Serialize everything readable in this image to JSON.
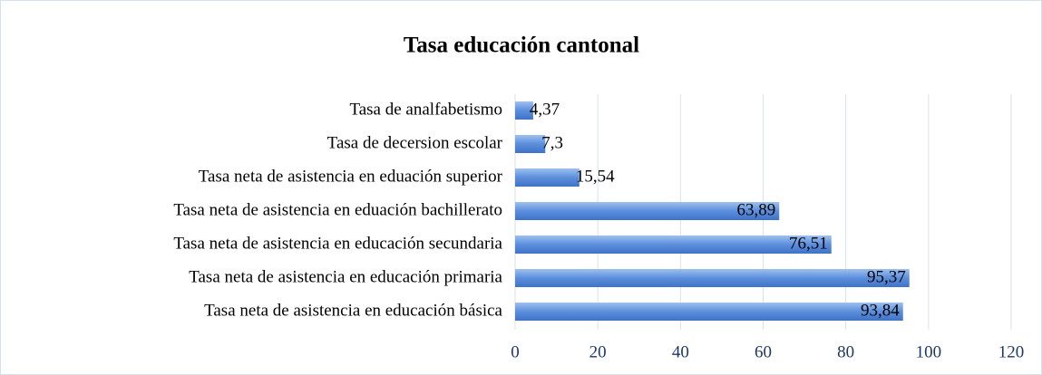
{
  "chart_data": {
    "type": "bar",
    "orientation": "horizontal",
    "title": "Tasa educación cantonal",
    "categories": [
      "Tasa de analfabetismo",
      "Tasa de decersion escolar",
      "Tasa neta de asistencia en eduación superior",
      "Tasa neta de asistencia en eduación bachillerato",
      "Tasa neta de asistencia en educación secundaria",
      "Tasa neta de asistencia en educación primaria",
      "Tasa neta de asistencia en educación básica"
    ],
    "values": [
      4.37,
      7.3,
      15.54,
      63.89,
      76.51,
      95.37,
      93.84
    ],
    "value_labels": [
      "4,37",
      "7,3",
      "15,54",
      "63,89",
      "76,51",
      "95,37",
      "93,84"
    ],
    "color": "#4f81bd",
    "xlim": [
      0,
      120
    ],
    "xticks": [
      0,
      20,
      40,
      60,
      80,
      100,
      120
    ],
    "grid": true
  }
}
